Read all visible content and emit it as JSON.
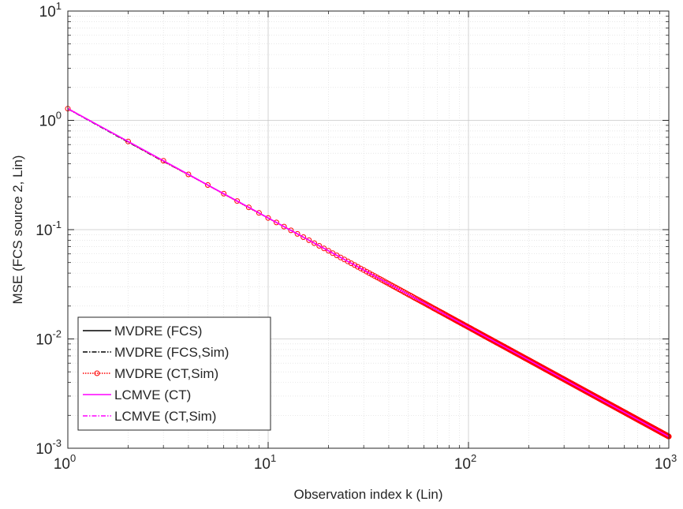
{
  "chart_data": {
    "type": "line",
    "xlabel": "Observation index k (Lin)",
    "ylabel": "MSE (FCS source 2, Lin)",
    "xscale": "log",
    "yscale": "log",
    "xlim": [
      1,
      1000
    ],
    "ylim": [
      0.001,
      10
    ],
    "grid": true,
    "minor_grid": true,
    "legend_position": "bottom-left",
    "x_ticks": [
      {
        "base": "10",
        "exp": "0",
        "value": 1
      },
      {
        "base": "10",
        "exp": "1",
        "value": 10
      },
      {
        "base": "10",
        "exp": "2",
        "value": 100
      },
      {
        "base": "10",
        "exp": "3",
        "value": 1000
      }
    ],
    "y_ticks": [
      {
        "base": "10",
        "exp": "-3",
        "value": 0.001
      },
      {
        "base": "10",
        "exp": "-2",
        "value": 0.01
      },
      {
        "base": "10",
        "exp": "-1",
        "value": 0.1
      },
      {
        "base": "10",
        "exp": "0",
        "value": 1
      },
      {
        "base": "10",
        "exp": "1",
        "value": 10
      }
    ],
    "model": "MSE(k) = 1.28 / k",
    "x": [
      1,
      2,
      3,
      4,
      5,
      6,
      7,
      8,
      10,
      20,
      50,
      100,
      200,
      500,
      1000
    ],
    "series": [
      {
        "name": "MVDRE (FCS)",
        "color": "#000000",
        "style": "solid",
        "marker": "none",
        "values": [
          1.28,
          0.64,
          0.427,
          0.32,
          0.256,
          0.213,
          0.183,
          0.16,
          0.128,
          0.064,
          0.0256,
          0.0128,
          0.0064,
          0.00256,
          0.00128
        ]
      },
      {
        "name": "MVDRE (FCS,Sim)",
        "color": "#000000",
        "style": "dashdot",
        "marker": "none",
        "values": [
          1.27,
          0.63,
          0.42,
          0.318,
          0.255,
          0.212,
          0.182,
          0.159,
          0.128,
          0.064,
          0.0256,
          0.0128,
          0.0064,
          0.00256,
          0.00128
        ]
      },
      {
        "name": "MVDRE (CT,Sim)",
        "color": "#ff0000",
        "style": "dotted",
        "marker": "circle",
        "values": [
          1.29,
          0.635,
          0.42,
          0.317,
          0.254,
          0.211,
          0.181,
          0.158,
          0.127,
          0.0635,
          0.0255,
          0.0127,
          0.00637,
          0.00255,
          0.00127
        ]
      },
      {
        "name": "LCMVE (CT)",
        "color": "#ff00ff",
        "style": "solid",
        "marker": "none",
        "values": [
          1.28,
          0.64,
          0.427,
          0.32,
          0.256,
          0.213,
          0.183,
          0.16,
          0.128,
          0.064,
          0.0256,
          0.0128,
          0.0064,
          0.00256,
          0.00128
        ]
      },
      {
        "name": "LCMVE (CT,Sim)",
        "color": "#ff00ff",
        "style": "dashdot",
        "marker": "none",
        "values": [
          1.28,
          0.64,
          0.425,
          0.319,
          0.255,
          0.213,
          0.182,
          0.16,
          0.128,
          0.064,
          0.0256,
          0.0128,
          0.0064,
          0.00256,
          0.00128
        ]
      }
    ]
  }
}
